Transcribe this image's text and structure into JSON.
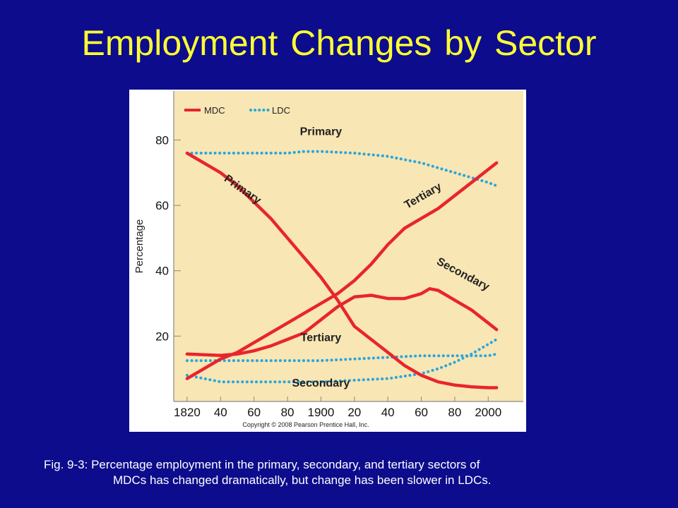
{
  "slide": {
    "title": "Employment Changes by Sector",
    "caption_line1": "Fig. 9-3: Percentage employment in the primary, secondary, and tertiary sectors of",
    "caption_line2": "MDCs has changed dramatically, but change has been slower in LDCs."
  },
  "colors": {
    "background": "#0c0c8c",
    "title": "#ffff33",
    "plot_bg": "#f8e6b4",
    "mdc": "#e8252b",
    "ldc": "#2aa6dd"
  },
  "chart_data": {
    "type": "line",
    "ylabel": "Percentage",
    "xlabel": "",
    "ylim": [
      0,
      95
    ],
    "xlim": [
      1812,
      2021
    ],
    "yticks": [
      20,
      40,
      60,
      80
    ],
    "xtick_values": [
      1820,
      1840,
      1860,
      1880,
      1900,
      1920,
      1940,
      1960,
      1980,
      2000
    ],
    "xtick_labels": [
      "1820",
      "40",
      "60",
      "80",
      "1900",
      "20",
      "40",
      "60",
      "80",
      "2000"
    ],
    "legend": {
      "position": "top-left",
      "mdc_label": "MDC",
      "ldc_label": "LDC"
    },
    "copyright": "Copyright © 2008 Pearson Prentice Hall, Inc.",
    "series": [
      {
        "group": "MDC",
        "sector": "Primary",
        "style": "solid",
        "x": [
          1820,
          1830,
          1840,
          1850,
          1860,
          1870,
          1880,
          1890,
          1900,
          1910,
          1920,
          1930,
          1940,
          1950,
          1960,
          1970,
          1980,
          1990,
          2000,
          2005
        ],
        "y": [
          76,
          73,
          70,
          66,
          61,
          56,
          50,
          44,
          38,
          31,
          23,
          19,
          15,
          11,
          8,
          6,
          5,
          4.5,
          4.2,
          4.2
        ]
      },
      {
        "group": "MDC",
        "sector": "Secondary",
        "style": "solid",
        "x": [
          1820,
          1830,
          1840,
          1850,
          1860,
          1870,
          1880,
          1890,
          1900,
          1910,
          1920,
          1930,
          1940,
          1950,
          1960,
          1965,
          1970,
          1980,
          1990,
          2000,
          2005
        ],
        "y": [
          14.5,
          14.3,
          14.1,
          14.5,
          15.5,
          17,
          19,
          21,
          25,
          29,
          32,
          32.5,
          31.5,
          31.5,
          33,
          34.5,
          34,
          31,
          28,
          24,
          22
        ]
      },
      {
        "group": "MDC",
        "sector": "Tertiary",
        "style": "solid",
        "x": [
          1820,
          1830,
          1840,
          1850,
          1860,
          1870,
          1880,
          1890,
          1900,
          1910,
          1920,
          1930,
          1940,
          1950,
          1960,
          1970,
          1980,
          1990,
          2000,
          2005
        ],
        "y": [
          7,
          10,
          13,
          15,
          18,
          21,
          24,
          27,
          30,
          33,
          37,
          42,
          48,
          53,
          56,
          59,
          63,
          67,
          71,
          73
        ]
      },
      {
        "group": "LDC",
        "sector": "Primary",
        "style": "dotted",
        "x": [
          1820,
          1840,
          1860,
          1880,
          1890,
          1900,
          1920,
          1940,
          1960,
          1980,
          2000,
          2005
        ],
        "y": [
          76,
          76,
          76,
          76,
          76.5,
          76.5,
          76,
          75,
          73,
          70,
          67,
          66
        ]
      },
      {
        "group": "LDC",
        "sector": "Secondary",
        "style": "dotted",
        "x": [
          1820,
          1840,
          1860,
          1880,
          1900,
          1920,
          1940,
          1960,
          1970,
          1980,
          1990,
          2000,
          2005
        ],
        "y": [
          8,
          6,
          6,
          6,
          6,
          6.5,
          7,
          8.5,
          10,
          12,
          14.5,
          17.5,
          19
        ]
      },
      {
        "group": "LDC",
        "sector": "Tertiary",
        "style": "dotted",
        "x": [
          1820,
          1840,
          1860,
          1880,
          1900,
          1920,
          1940,
          1960,
          1980,
          2000,
          2005
        ],
        "y": [
          12.5,
          12.5,
          12.5,
          12.5,
          12.5,
          13,
          13.5,
          14,
          14,
          14,
          14.5
        ]
      }
    ],
    "annotations": [
      {
        "text": "Primary",
        "x": 1900,
        "y": 81.5,
        "rotate": 0
      },
      {
        "text": "Primary",
        "x": 1852,
        "y": 64,
        "rotate": 35
      },
      {
        "text": "Tertiary",
        "x": 1962,
        "y": 62,
        "rotate": -30
      },
      {
        "text": "Secondary",
        "x": 1984,
        "y": 38,
        "rotate": 28
      },
      {
        "text": "Tertiary",
        "x": 1900,
        "y": 18.5,
        "rotate": 0
      },
      {
        "text": "Secondary",
        "x": 1900,
        "y": 4.5,
        "rotate": 0
      }
    ]
  }
}
